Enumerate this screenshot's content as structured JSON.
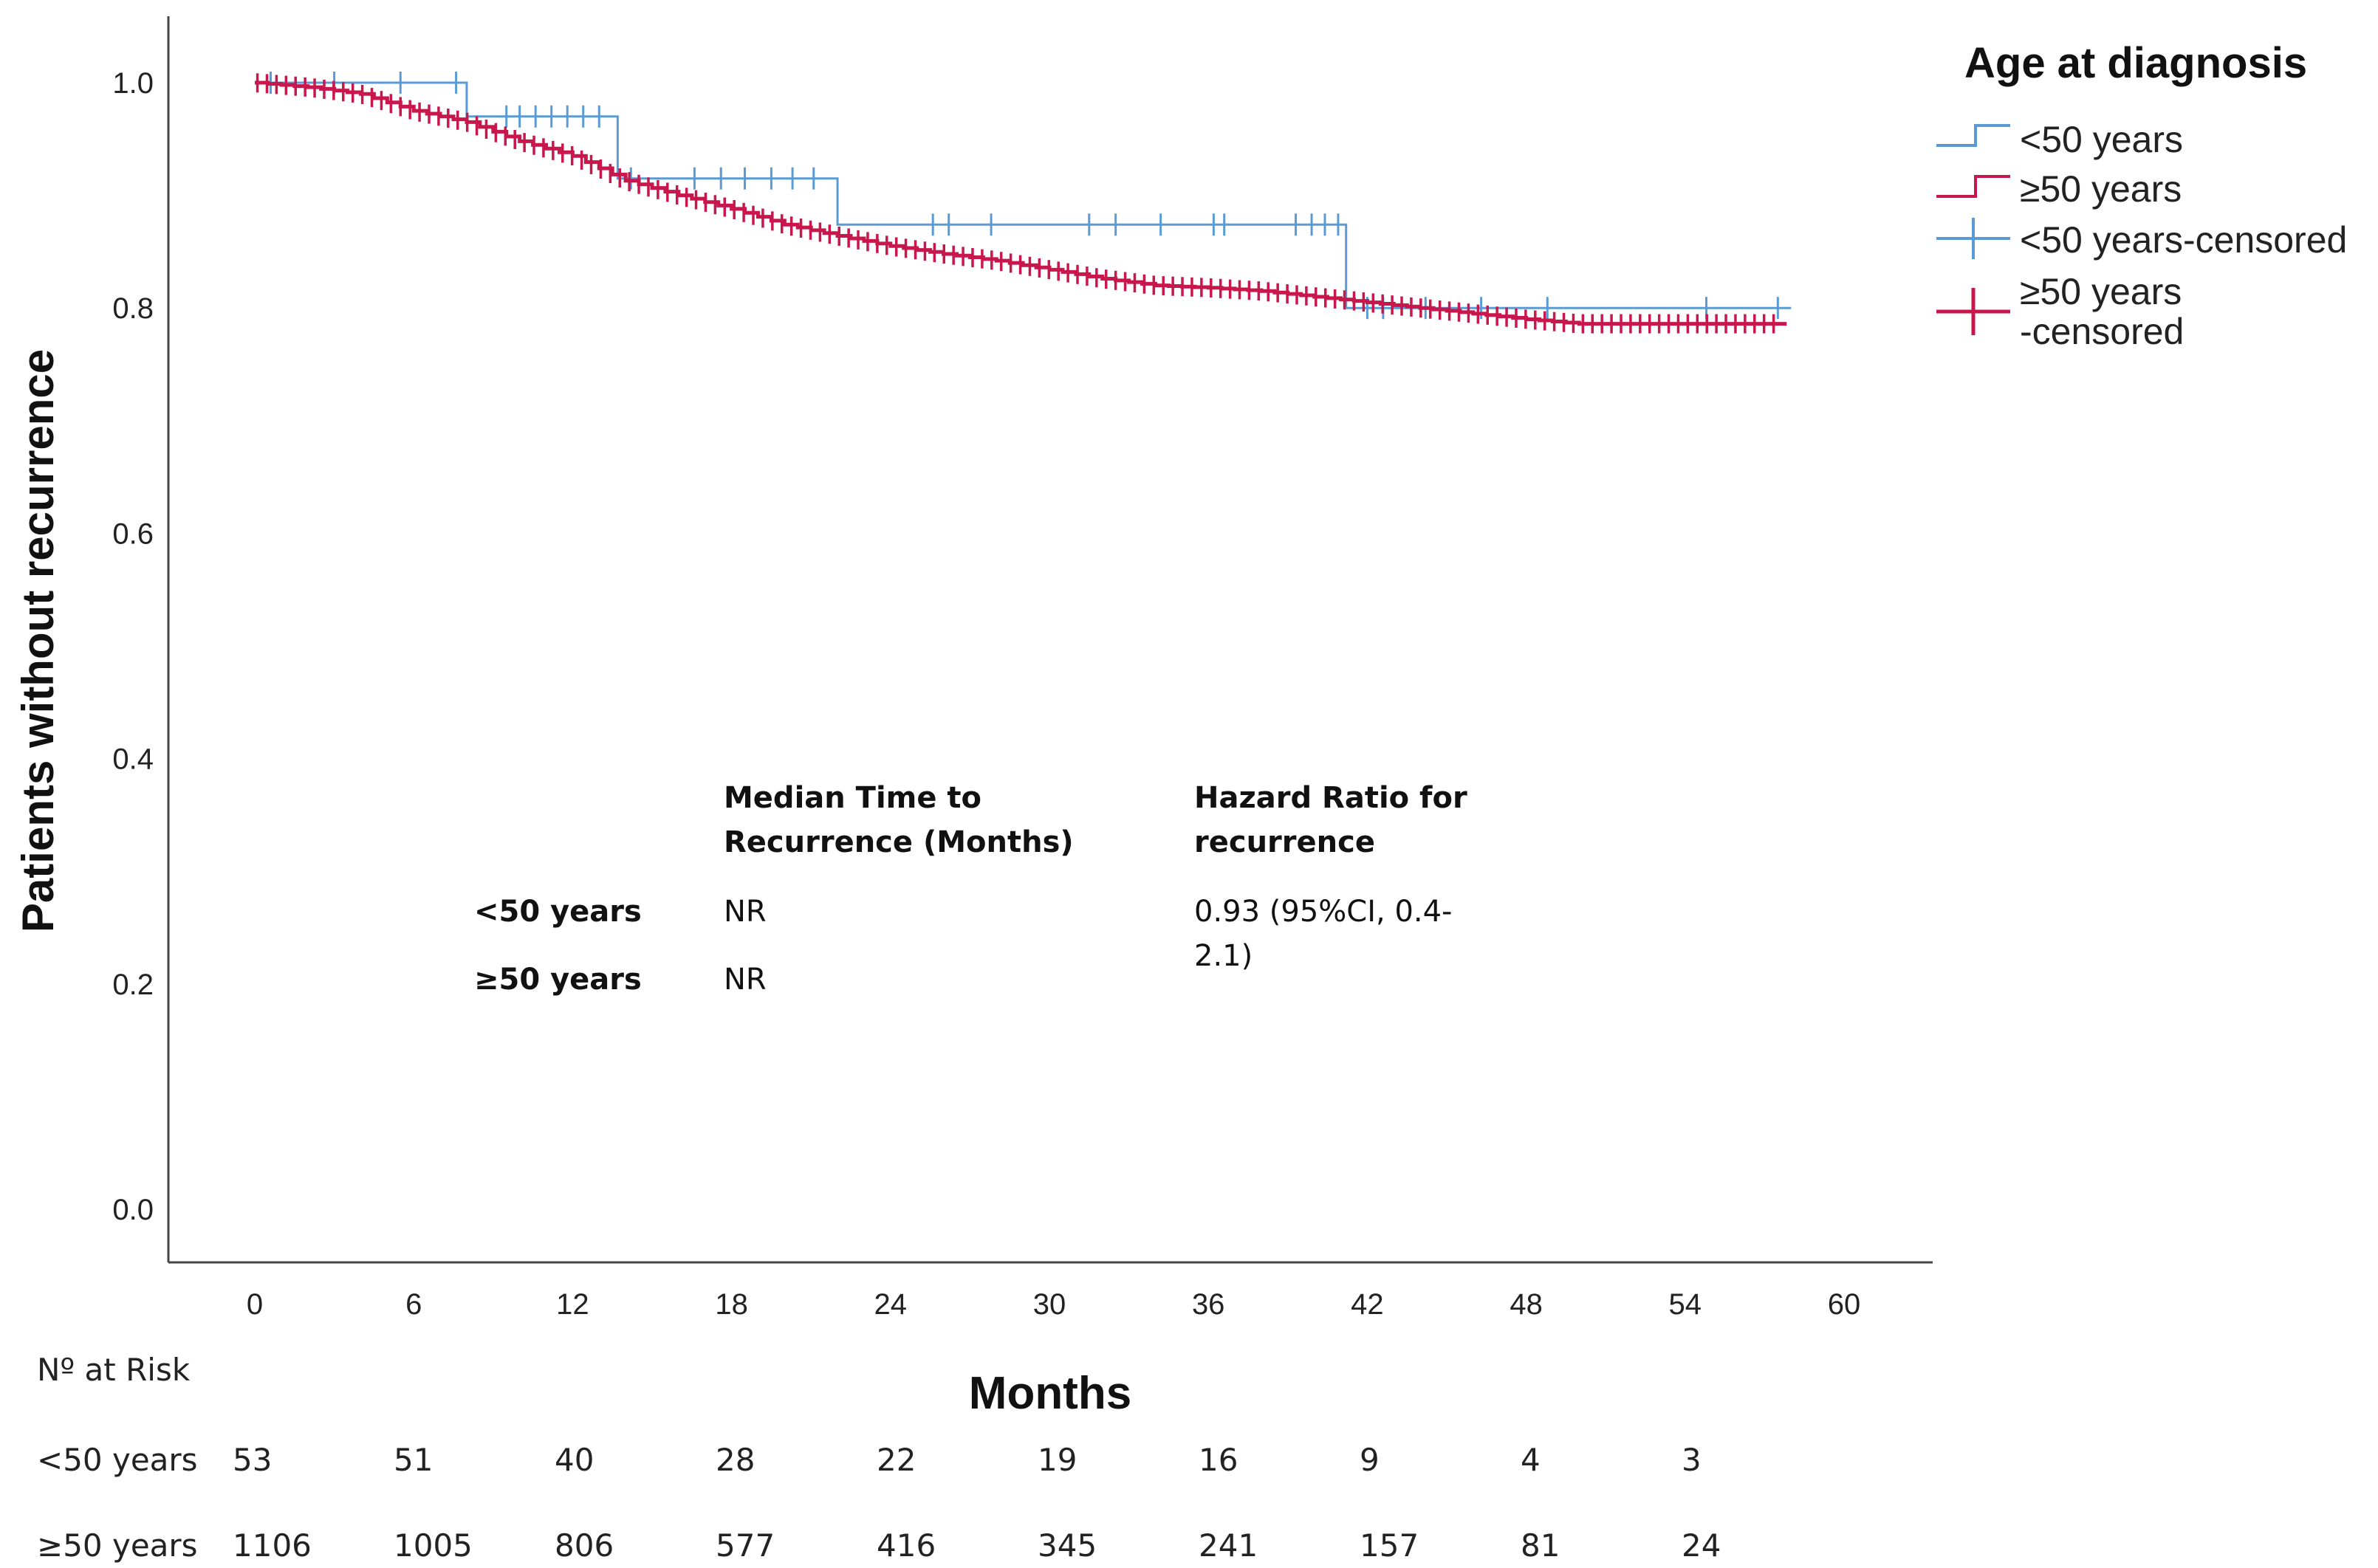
{
  "chart_data": {
    "type": "line",
    "subtype": "kaplan-meier",
    "xlabel": "Months",
    "ylabel": "Patients without recurrence",
    "xlim": [
      -5,
      62
    ],
    "ylim": [
      -0.05,
      1.06
    ],
    "x_ticks": [
      0,
      6,
      12,
      18,
      24,
      30,
      36,
      42,
      48,
      54,
      60
    ],
    "x_tick_labels": [
      "0",
      "6",
      "12",
      "18",
      "24",
      "30",
      "36",
      "42",
      "48",
      "54",
      "60"
    ],
    "y_ticks": [
      0.0,
      0.2,
      0.4,
      0.6,
      0.8,
      1.0
    ],
    "y_tick_labels": [
      "0.0",
      "0.2",
      "0.4",
      "0.6",
      "0.8",
      "1.0"
    ],
    "legend": {
      "title": "Age at diagnosis",
      "placement": "top-right",
      "entries": [
        "<50 years",
        "≥50 years",
        "<50 years-censored",
        "≥50 years\n-censored"
      ]
    },
    "series": [
      {
        "name": "<50 years",
        "color": "#5b9bd5",
        "steps": [
          [
            0,
            1.0
          ],
          [
            8,
            0.97
          ],
          [
            13.7,
            0.915
          ],
          [
            22,
            0.874
          ],
          [
            41.2,
            0.8
          ],
          [
            58,
            0.8
          ]
        ],
        "censored": [
          0.6,
          3,
          5.5,
          7.6,
          9.5,
          10,
          10.6,
          11.2,
          11.8,
          12.4,
          13,
          14.2,
          16.6,
          17.6,
          18.5,
          19.5,
          20.3,
          21.1,
          25.6,
          26.2,
          27.8,
          31.5,
          32.5,
          34.2,
          36.2,
          36.6,
          39.3,
          39.9,
          40.4,
          40.9,
          42,
          42.6,
          44.2,
          46.3,
          48.8,
          54.8,
          57.5
        ]
      },
      {
        "name": "≥50 years",
        "color": "#c8174d",
        "points": [
          [
            0,
            1.0
          ],
          [
            2,
            0.996
          ],
          [
            4,
            0.99
          ],
          [
            6,
            0.975
          ],
          [
            8,
            0.965
          ],
          [
            10,
            0.948
          ],
          [
            12,
            0.935
          ],
          [
            14,
            0.913
          ],
          [
            16,
            0.9
          ],
          [
            18,
            0.888
          ],
          [
            20,
            0.874
          ],
          [
            22,
            0.864
          ],
          [
            24,
            0.855
          ],
          [
            26,
            0.848
          ],
          [
            28,
            0.842
          ],
          [
            30,
            0.834
          ],
          [
            32,
            0.826
          ],
          [
            34,
            0.82
          ],
          [
            36,
            0.818
          ],
          [
            38,
            0.815
          ],
          [
            40,
            0.81
          ],
          [
            42,
            0.805
          ],
          [
            44,
            0.8
          ],
          [
            46,
            0.795
          ],
          [
            48,
            0.79
          ],
          [
            50,
            0.786
          ],
          [
            52,
            0.786
          ],
          [
            54,
            0.786
          ],
          [
            57.5,
            0.786
          ]
        ]
      }
    ],
    "annotation": {
      "col1_header_line1": "Median Time to",
      "col1_header_line2": "Recurrence (Months)",
      "col2_header_line1": "Hazard Ratio for",
      "col2_header_line2": "recurrence",
      "rows": [
        {
          "group": "<50 years",
          "median": "NR",
          "hr_line1": "0.93 (95%CI, 0.4-",
          "hr_line2": "2.1)"
        },
        {
          "group": "≥50 years",
          "median": "NR",
          "hr_line1": "",
          "hr_line2": ""
        }
      ]
    },
    "risk_table": {
      "title": "Nº at Risk",
      "groups": [
        {
          "label": "<50 years",
          "values": [
            "53",
            "51",
            "40",
            "28",
            "22",
            "19",
            "16",
            "9",
            "4",
            "3"
          ]
        },
        {
          "label": "≥50 years",
          "values": [
            "1106",
            "1005",
            "806",
            "577",
            "416",
            "345",
            "241",
            "157",
            "81",
            "24"
          ]
        }
      ]
    }
  }
}
